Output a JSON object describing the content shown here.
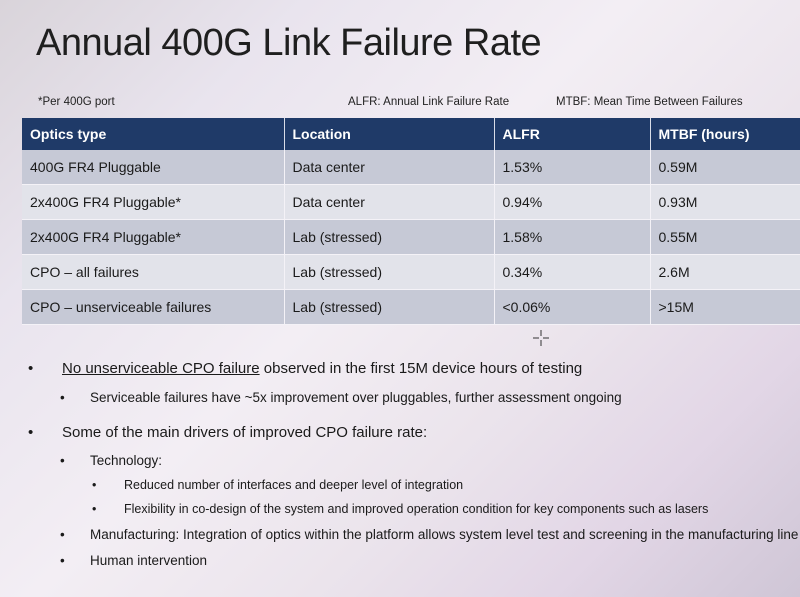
{
  "title": "Annual 400G Link Failure Rate",
  "notes": {
    "per_port": "*Per 400G port",
    "alfr_def": "ALFR: Annual Link Failure Rate",
    "mtbf_def": "MTBF: Mean Time Between Failures"
  },
  "table": {
    "headers": [
      "Optics type",
      "Location",
      "ALFR",
      "MTBF (hours)"
    ],
    "rows": [
      [
        "400G FR4 Pluggable",
        "Data center",
        "1.53%",
        "0.59M"
      ],
      [
        "2x400G FR4 Pluggable*",
        "Data center",
        "0.94%",
        "0.93M"
      ],
      [
        "2x400G FR4 Pluggable*",
        "Lab (stressed)",
        "1.58%",
        "0.55M"
      ],
      [
        "CPO – all failures",
        "Lab (stressed)",
        "0.34%",
        "2.6M"
      ],
      [
        "CPO – unserviceable failures",
        "Lab (stressed)",
        "<0.06%",
        ">15M"
      ]
    ]
  },
  "bullets": {
    "b1_underlined": "No unserviceable CPO failure",
    "b1_rest": " observed in the first 15M device hours of testing",
    "b1_sub": "Serviceable failures have ~5x improvement over pluggables, further assessment ongoing",
    "b2": "Some of the main drivers of improved CPO failure rate:",
    "b2_sub1": "Technology:",
    "b2_sub1_a": "Reduced number of interfaces and deeper level of integration",
    "b2_sub1_b": "Flexibility in co-design of the system and improved operation condition for key components such as lasers",
    "b2_sub2": "Manufacturing: Integration of optics within the platform allows system level test and screening in the manufacturing line",
    "b2_sub3": "Human intervention"
  },
  "bullet_char": "•",
  "colors": {
    "header_bg": "#1f3a68",
    "row_dark": "#c6c9d6",
    "row_light": "#e2e3ea"
  },
  "icons": {
    "cursor": "crosshair-cursor-icon"
  }
}
